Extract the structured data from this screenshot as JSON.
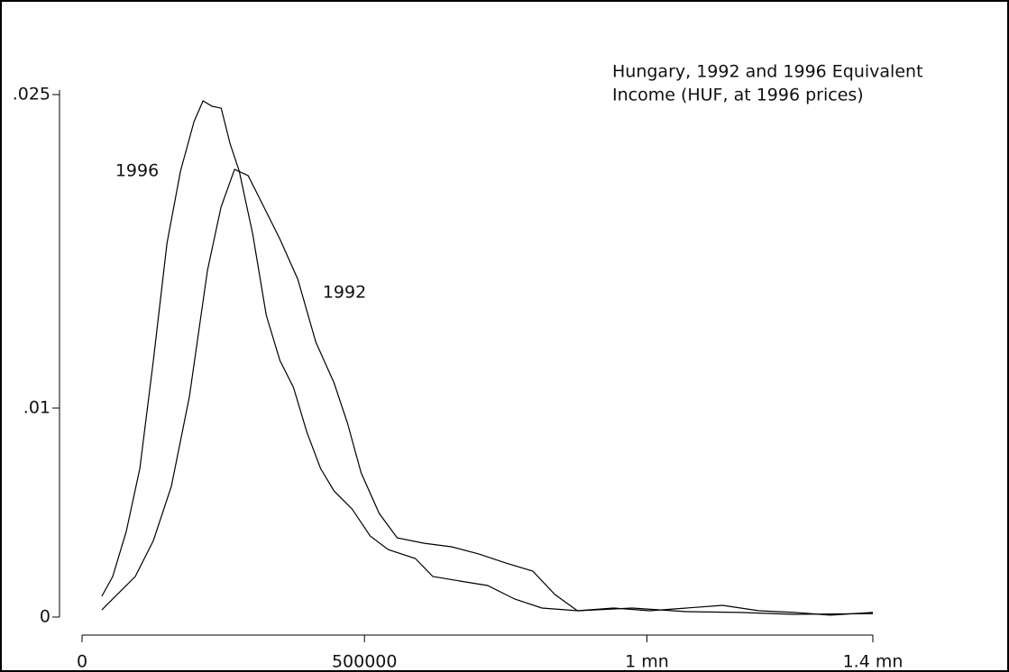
{
  "chart_data": {
    "type": "line",
    "title": [
      "Hungary, 1992 and 1996 Equivalent",
      "Income (HUF, at 1996 prices)"
    ],
    "xlim": [
      0,
      1400000
    ],
    "xticks": [
      0,
      500000,
      {
        "value": 1000000,
        "label": "1 mn"
      },
      {
        "value": 1400000,
        "label": "1.4 mn"
      }
    ],
    "ylim": [
      0,
      0.025
    ],
    "yticks": [
      0,
      {
        "value": 0.01,
        "label": ".01"
      },
      {
        "value": 0.025,
        "label": ".025"
      }
    ],
    "series": [
      {
        "name": "1996",
        "color": "#000000",
        "x": [
          35000,
          54300,
          78300,
          102300,
          126300,
          150300,
          174300,
          198300,
          214300,
          230300,
          246300,
          262300,
          278300,
          302200,
          326200,
          350200,
          374200,
          398200,
          422200,
          446200,
          478100,
          510100,
          542000,
          590000,
          621000,
          670000,
          718000,
          766000,
          814000,
          878000,
          974000,
          1070000,
          1165000,
          1261000,
          1400000
        ],
        "values": [
          0.00099,
          0.00194,
          0.00409,
          0.00711,
          0.01228,
          0.01789,
          0.02134,
          0.02371,
          0.0247,
          0.02444,
          0.02435,
          0.02263,
          0.02134,
          0.01832,
          0.01444,
          0.01228,
          0.01099,
          0.00884,
          0.00711,
          0.00603,
          0.00517,
          0.00388,
          0.00323,
          0.0028,
          0.00194,
          0.00172,
          0.00151,
          0.00086,
          0.00043,
          0.0003,
          0.00043,
          0.00026,
          0.00022,
          0.00013,
          0.00017
        ]
      },
      {
        "name": "1992",
        "color": "#000000",
        "x": [
          35000,
          62300,
          94200,
          126200,
          158100,
          190100,
          222000,
          246000,
          270000,
          294000,
          318000,
          350000,
          382000,
          414000,
          446000,
          470000,
          494000,
          526000,
          558000,
          606000,
          654000,
          702000,
          750000,
          798000,
          837000,
          877000,
          941000,
          1005000,
          1070000,
          1134000,
          1198000,
          1261000,
          1325000,
          1400000
        ],
        "values": [
          0.00034,
          0.00108,
          0.00194,
          0.00366,
          0.00625,
          0.01056,
          0.01659,
          0.01961,
          0.02142,
          0.02112,
          0.01983,
          0.0181,
          0.01616,
          0.01315,
          0.01121,
          0.00927,
          0.0069,
          0.00496,
          0.00379,
          0.00353,
          0.00336,
          0.00302,
          0.00259,
          0.0022,
          0.00108,
          0.0003,
          0.00043,
          0.0003,
          0.00043,
          0.00056,
          0.0003,
          0.00022,
          9e-05,
          0.00022
        ]
      }
    ]
  }
}
